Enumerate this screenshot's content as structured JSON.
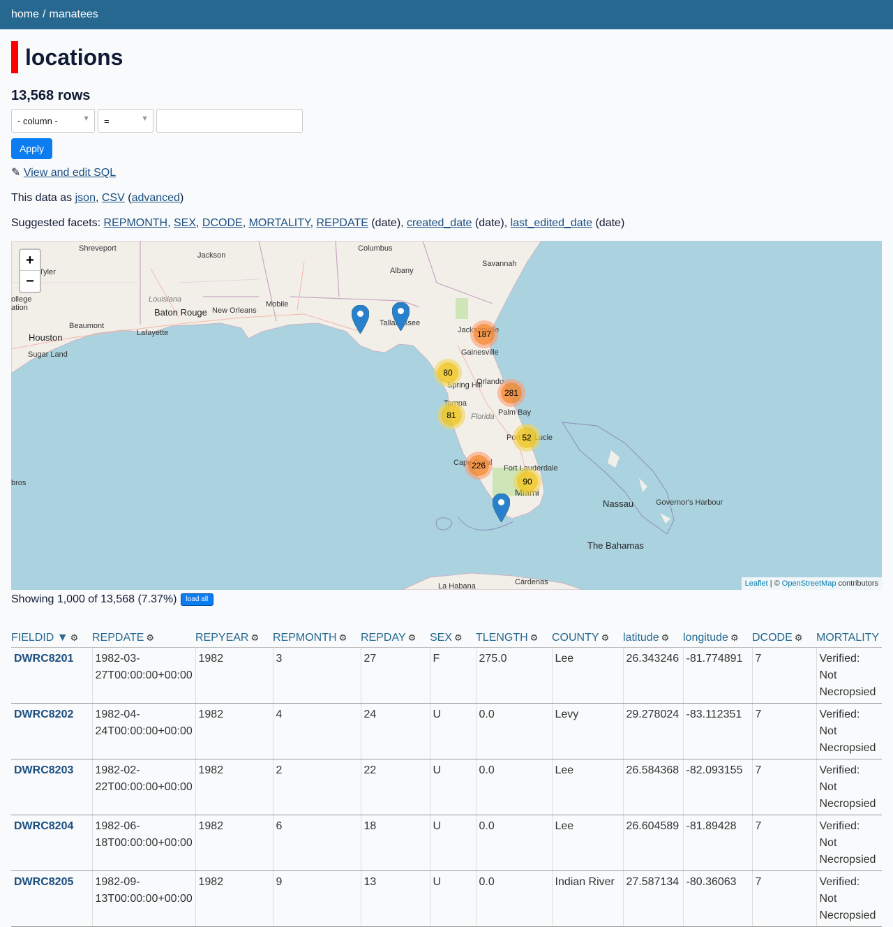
{
  "breadcrumb": {
    "home": "home",
    "separator": "/",
    "current": "manatees"
  },
  "page": {
    "title": "locations",
    "row_count": "13,568 rows"
  },
  "filter": {
    "column_label": "- column -",
    "operator": "=",
    "value": "",
    "apply_label": "Apply"
  },
  "sql": {
    "icon": "✎",
    "link": "View and edit SQL"
  },
  "export": {
    "prefix": "This data as",
    "json": "json",
    "sep1": ",",
    "csv": "CSV",
    "open_paren": "(",
    "advanced": "advanced",
    "close_paren": ")"
  },
  "facets": {
    "prefix": "Suggested facets:",
    "items": [
      "REPMONTH",
      "SEX",
      "DCODE",
      "MORTALITY",
      "REPDATE",
      "created_date",
      "last_edited_date"
    ],
    "date_suffix": "(date)"
  },
  "map": {
    "zoom_in": "+",
    "zoom_out": "−",
    "attribution_leaflet": "Leaflet",
    "attribution_sep": "| ©",
    "attribution_osm": "OpenStreetMap",
    "attribution_suffix": "contributors",
    "places": [
      "Shreveport",
      "Jackson",
      "Columbus",
      "Savannah",
      "Albany",
      "Tyler",
      "Louisiana",
      "Baton Rouge",
      "Mobile",
      "Beaumont",
      "Lafayette",
      "New Orleans",
      "Houston",
      "Sugar Land",
      "ollege",
      "ation",
      "Jacksonville",
      "Tallahassee",
      "Gainesville",
      "Orlando",
      "Tampa",
      "Florida",
      "Palm Bay",
      "Port St. Lucie",
      "Cape Coral",
      "Fort Lauderdale",
      "Miami",
      "Nassau",
      "Governor's Harbour",
      "The Bahamas",
      "Cárdenas",
      "La Habana",
      "bros",
      "Spring Hill"
    ],
    "clusters": [
      "187",
      "80",
      "281",
      "81",
      "52",
      "226",
      "90"
    ]
  },
  "showing": {
    "text": "Showing 1,000 of 13,568 (7.37%)",
    "load_all": "load all"
  },
  "table": {
    "columns": [
      "FIELDID ▼",
      "REPDATE",
      "REPYEAR",
      "REPMONTH",
      "REPDAY",
      "SEX",
      "TLENGTH",
      "COUNTY",
      "latitude",
      "longitude",
      "DCODE",
      "MORTALITY"
    ],
    "gear": "⚙",
    "rows": [
      [
        "DWRC8201",
        "1982-03-27T00:00:00+00:00",
        "1982",
        "3",
        "27",
        "F",
        "275.0",
        "Lee",
        "26.343246",
        "-81.774891",
        "7",
        "Verified: Not Necropsied"
      ],
      [
        "DWRC8202",
        "1982-04-24T00:00:00+00:00",
        "1982",
        "4",
        "24",
        "U",
        "0.0",
        "Levy",
        "29.278024",
        "-83.112351",
        "7",
        "Verified: Not Necropsied"
      ],
      [
        "DWRC8203",
        "1982-02-22T00:00:00+00:00",
        "1982",
        "2",
        "22",
        "U",
        "0.0",
        "Lee",
        "26.584368",
        "-82.093155",
        "7",
        "Verified: Not Necropsied"
      ],
      [
        "DWRC8204",
        "1982-06-18T00:00:00+00:00",
        "1982",
        "6",
        "18",
        "U",
        "0.0",
        "Lee",
        "26.604589",
        "-81.89428",
        "7",
        "Verified: Not Necropsied"
      ],
      [
        "DWRC8205",
        "1982-09-13T00:00:00+00:00",
        "1982",
        "9",
        "13",
        "U",
        "0.0",
        "Indian River",
        "27.587134",
        "-80.36063",
        "7",
        "Verified: Not Necropsied"
      ]
    ]
  },
  "colors": {
    "header_bg": "#276890",
    "accent": "#ff0000",
    "button": "#0c7df0",
    "water": "#aad3df",
    "land": "#f2efe9"
  }
}
